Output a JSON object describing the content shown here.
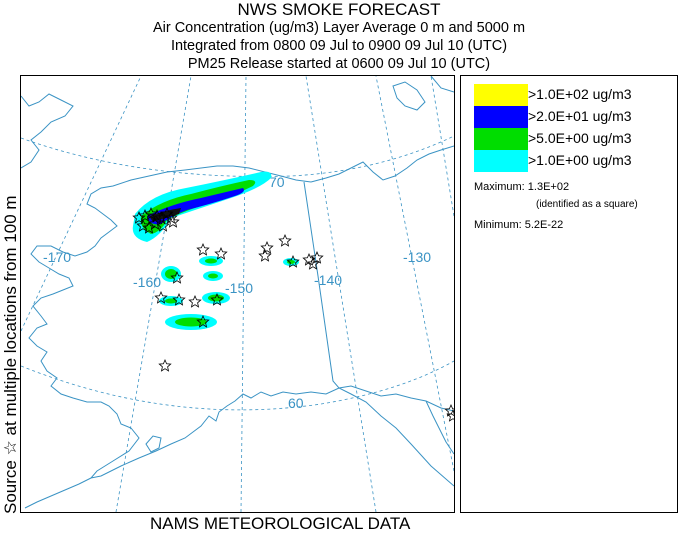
{
  "header": {
    "title": "NWS SMOKE FORECAST",
    "line2": "Air Concentration (ug/m3) Layer Average    0 m and  5000 m",
    "line3": "Integrated from 0800 09 Jul to 0900 09 Jul 10 (UTC)",
    "line4": "PM25 Release started at 0600 09 Jul 10 (UTC)"
  },
  "side_label": "Source ☆ at multiple locations   from   100 m",
  "footer": "NAMS METEOROLOGICAL DATA",
  "map": {
    "longitude_labels": [
      "-170",
      "-160",
      "-150",
      "-140",
      "-130"
    ],
    "latitude_labels": [
      "70",
      "60"
    ],
    "colors": {
      "graticule": "#3a93c4",
      "coast": "#3a93c4",
      "border": "#3a93c4",
      "c1": "#00ffff",
      "c2": "#00dd00",
      "c3": "#0000ff",
      "c4": "#ffff00"
    }
  },
  "legend": {
    "entries": [
      {
        "color": "#ffff00",
        "label": ">1.0E+02 ug/m3"
      },
      {
        "color": "#0000ff",
        "label": ">2.0E+01 ug/m3"
      },
      {
        "color": "#00dd00",
        "label": ">5.0E+00 ug/m3"
      },
      {
        "color": "#00ffff",
        "label": ">1.0E+00 ug/m3"
      }
    ],
    "maximum": "Maximum: 1.3E+02",
    "maximum_note": "(identified as a square)",
    "minimum": "Minimum: 5.2E-22"
  }
}
